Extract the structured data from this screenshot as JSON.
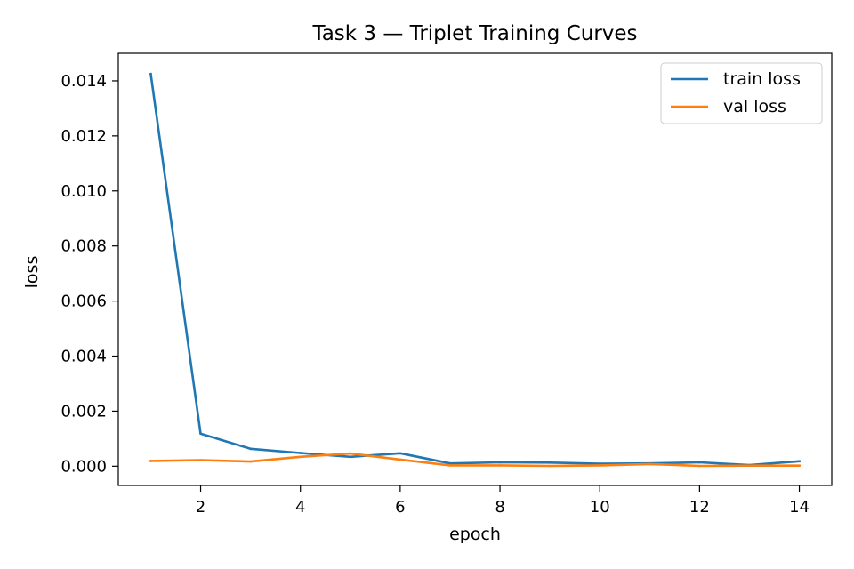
{
  "chart_data": {
    "type": "line",
    "title": "Task 3 — Triplet Training Curves",
    "xlabel": "epoch",
    "ylabel": "loss",
    "x": [
      1,
      2,
      3,
      4,
      5,
      6,
      7,
      8,
      9,
      10,
      11,
      12,
      13,
      14
    ],
    "xlim": [
      0.35,
      14.65
    ],
    "ylim": [
      -0.0007,
      0.015
    ],
    "xticks": [
      2,
      4,
      6,
      8,
      10,
      12,
      14
    ],
    "xtick_labels": [
      "2",
      "4",
      "6",
      "8",
      "10",
      "12",
      "14"
    ],
    "yticks": [
      0.0,
      0.002,
      0.004,
      0.006,
      0.008,
      0.01,
      0.012,
      0.014
    ],
    "ytick_labels": [
      "0.000",
      "0.002",
      "0.004",
      "0.006",
      "0.008",
      "0.010",
      "0.012",
      "0.014"
    ],
    "grid": false,
    "legend_position": "top-right",
    "series": [
      {
        "name": "train loss",
        "color": "#1f77b4",
        "values": [
          0.01425,
          0.00118,
          0.00063,
          0.00048,
          0.00034,
          0.00047,
          0.0001,
          0.00014,
          0.00013,
          9e-05,
          0.0001,
          0.00014,
          4e-05,
          0.00018
        ]
      },
      {
        "name": "val loss",
        "color": "#ff7f0e",
        "values": [
          0.00019,
          0.00022,
          0.00017,
          0.00034,
          0.00046,
          0.00024,
          3e-05,
          3e-05,
          1e-05,
          3e-05,
          8e-05,
          1e-05,
          2e-05,
          2e-05
        ]
      }
    ]
  }
}
